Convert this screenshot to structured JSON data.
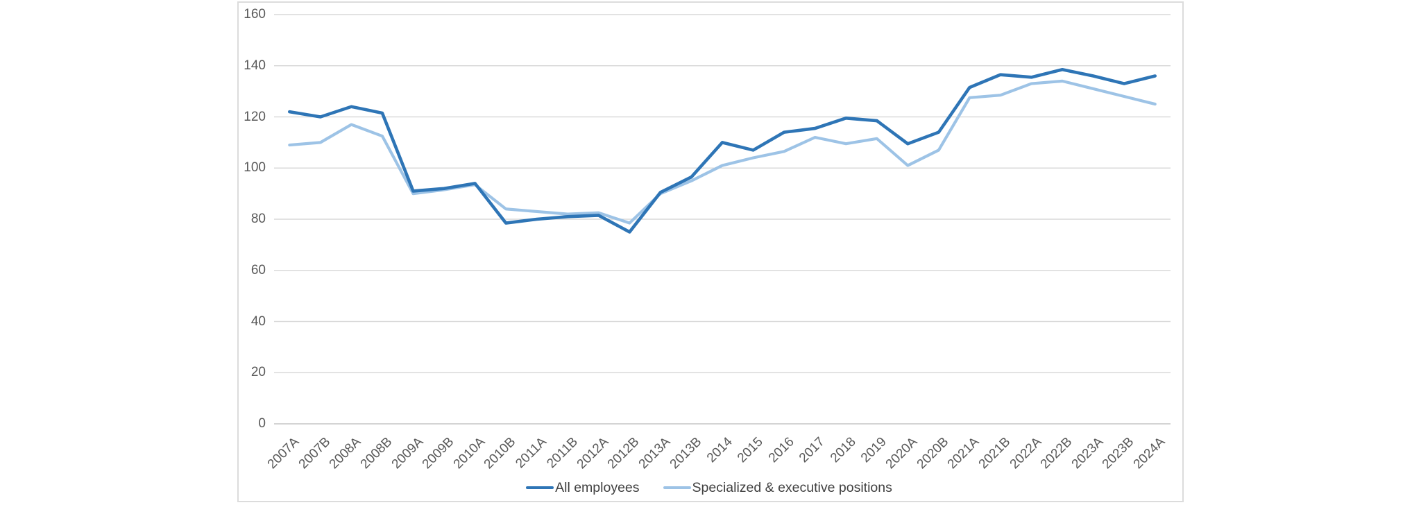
{
  "chart_data": {
    "type": "line",
    "title": "",
    "xlabel": "",
    "ylabel": "",
    "categories": [
      "2007A",
      "2007B",
      "2008A",
      "2008B",
      "2009A",
      "2009B",
      "2010A",
      "2010B",
      "2011A",
      "2011B",
      "2012A",
      "2012B",
      "2013A",
      "2013B",
      "2014",
      "2015",
      "2016",
      "2017",
      "2018",
      "2019",
      "2020A",
      "2020B",
      "2021A",
      "2021B",
      "2022A",
      "2022B",
      "2023A",
      "2023B",
      "2024A"
    ],
    "series": [
      {
        "name": "All employees",
        "color": "#2E75B6",
        "values": [
          122,
          120,
          124,
          121.5,
          91,
          92,
          94,
          78.5,
          80,
          81,
          81.5,
          75,
          90.5,
          96.5,
          110,
          107,
          114,
          115.5,
          119.5,
          118.5,
          109.5,
          114,
          131.5,
          136.5,
          135.5,
          138.5,
          136,
          133,
          136
        ]
      },
      {
        "name": "Specialized & executive positions",
        "color": "#9DC3E6",
        "values": [
          109,
          110,
          117,
          112.5,
          90,
          91.5,
          93.5,
          84,
          83,
          82,
          82.5,
          78.5,
          90,
          95,
          101,
          104,
          106.5,
          112,
          109.5,
          111.5,
          101,
          107,
          127.5,
          128.5,
          133,
          134,
          131,
          128,
          125
        ]
      }
    ],
    "ylim": [
      0,
      160
    ],
    "yticks": [
      0,
      20,
      40,
      60,
      80,
      100,
      120,
      140,
      160
    ],
    "grid": true,
    "gridline_color": "#D9D9D9",
    "axis_line_color": "#C6C6C6",
    "tick_label_color": "#595959",
    "legend_position": "bottom"
  }
}
